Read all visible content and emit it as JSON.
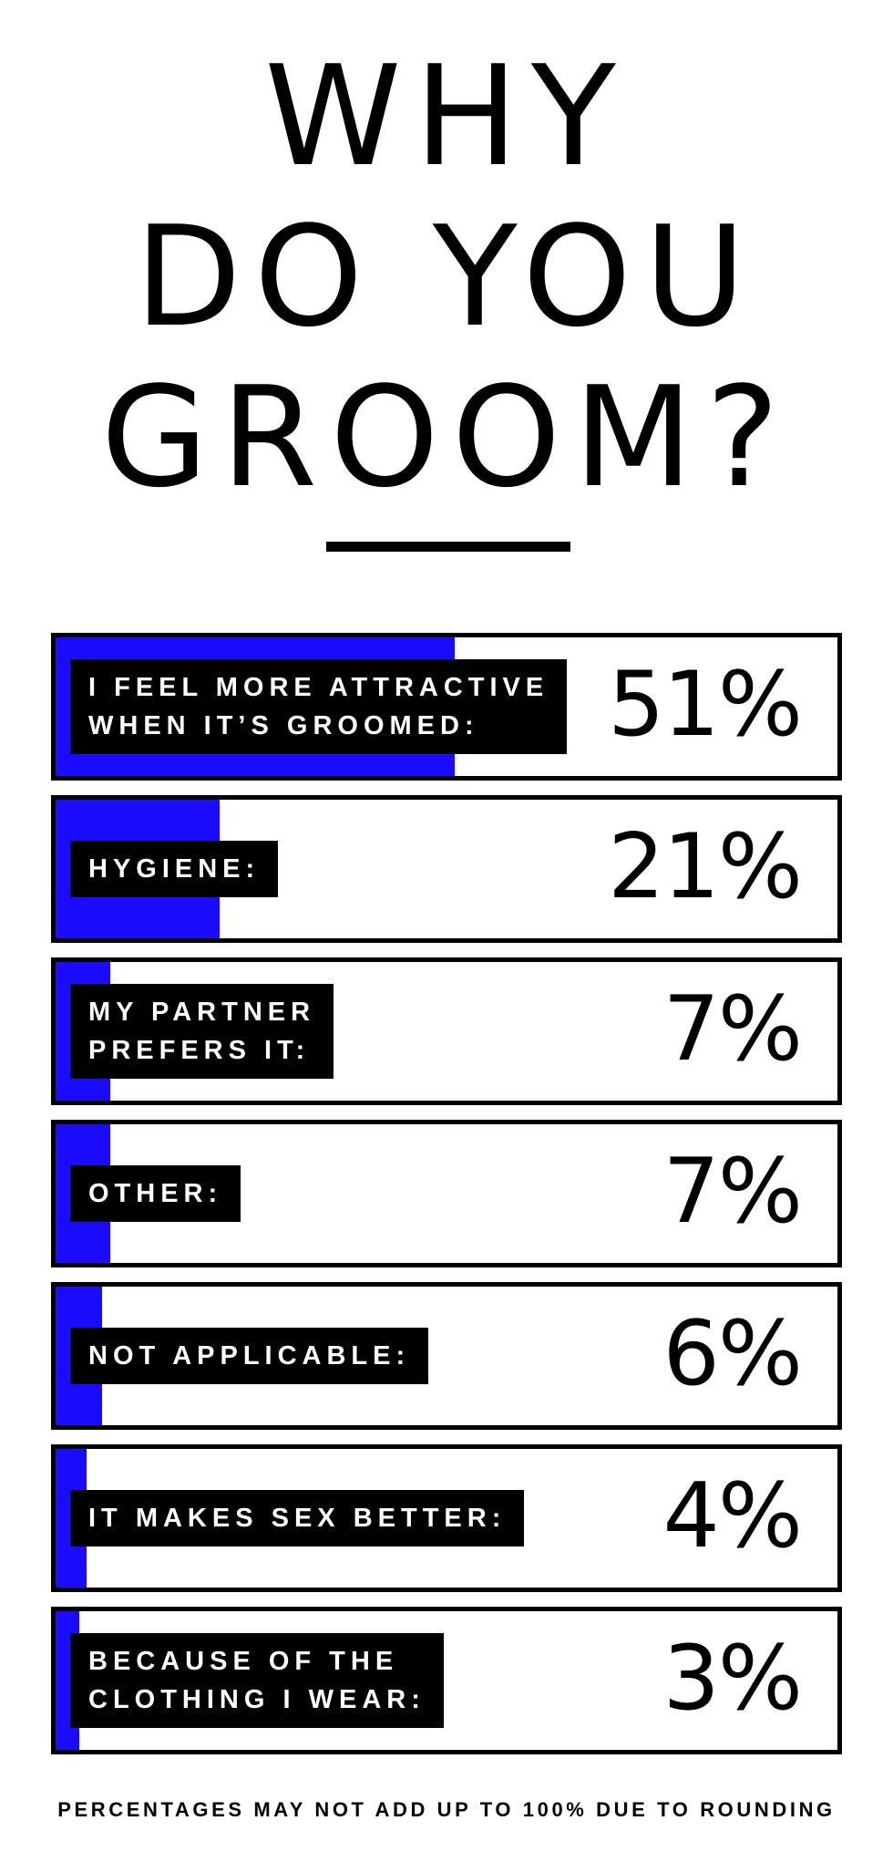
{
  "title_lines": [
    "WHY",
    "DO YOU",
    "GROOM?"
  ],
  "footnote": "PERCENTAGES MAY NOT ADD UP TO 100% DUE TO ROUNDING",
  "colors": {
    "bar": "#1a0bff",
    "label_background": "#000000",
    "label_text": "#ffffff",
    "border": "#000000"
  },
  "chart_data": {
    "type": "bar",
    "orientation": "horizontal",
    "title": "WHY DO YOU GROOM?",
    "categories": [
      "I FEEL MORE ATTRACTIVE\nWHEN IT’S GROOMED:",
      "HYGIENE:",
      "MY PARTNER\nPREFERS IT:",
      "OTHER:",
      "NOT APPLICABLE:",
      "IT MAKES SEX BETTER:",
      "BECAUSE OF THE\nCLOTHING I WEAR:"
    ],
    "values": [
      51,
      21,
      7,
      7,
      6,
      4,
      3
    ],
    "value_labels": [
      "51%",
      "21%",
      "7%",
      "7%",
      "6%",
      "4%",
      "3%"
    ],
    "unit": "%",
    "xlim": [
      0,
      100
    ],
    "grid": false,
    "legend": "none"
  }
}
